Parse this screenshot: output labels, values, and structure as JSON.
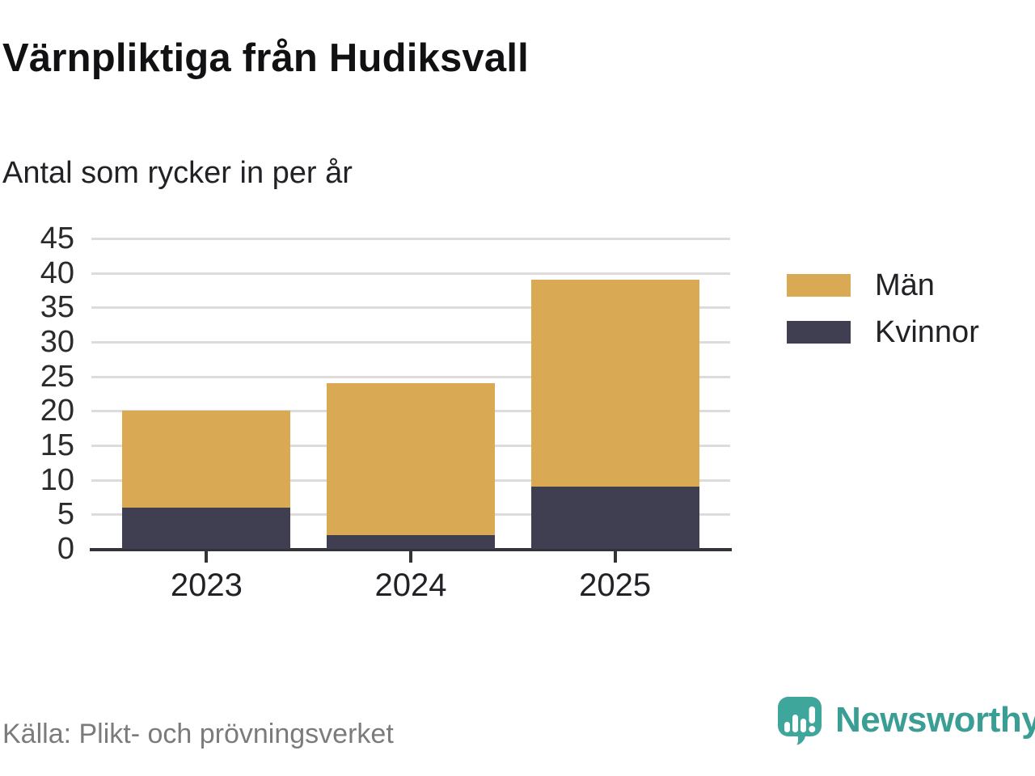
{
  "title": "Värnpliktiga från Hudiksvall",
  "subtitle": "Antal som rycker in per år",
  "source": "Källa: Plikt- och prövningsverket",
  "brand": {
    "name": "Newsworthy",
    "text_color": "#3A9E94",
    "icon_color": "#3EA69B",
    "icon": "newsworthy-bubble-chart-icon"
  },
  "chart_data": {
    "type": "bar",
    "stacked": true,
    "title": "Värnpliktiga från Hudiksvall",
    "subtitle": "Antal som rycker in per år",
    "xlabel": "",
    "ylabel": "Antal som rycker in per år",
    "categories": [
      "2023",
      "2024",
      "2025"
    ],
    "series": [
      {
        "name": "Män",
        "color": "#D9A954",
        "values": [
          14,
          22,
          30
        ]
      },
      {
        "name": "Kvinnor",
        "color": "#3F3F51",
        "values": [
          6,
          2,
          9
        ]
      }
    ],
    "stack_totals": [
      20,
      24,
      39
    ],
    "ylim": [
      0,
      45
    ],
    "yticks": [
      0,
      5,
      10,
      15,
      20,
      25,
      30,
      35,
      40,
      45
    ],
    "grid": true,
    "grid_color": "#DCDCDC",
    "axis_color": "#33333A",
    "tick_label_color": "#2b2b2e",
    "legend_position": "right"
  }
}
